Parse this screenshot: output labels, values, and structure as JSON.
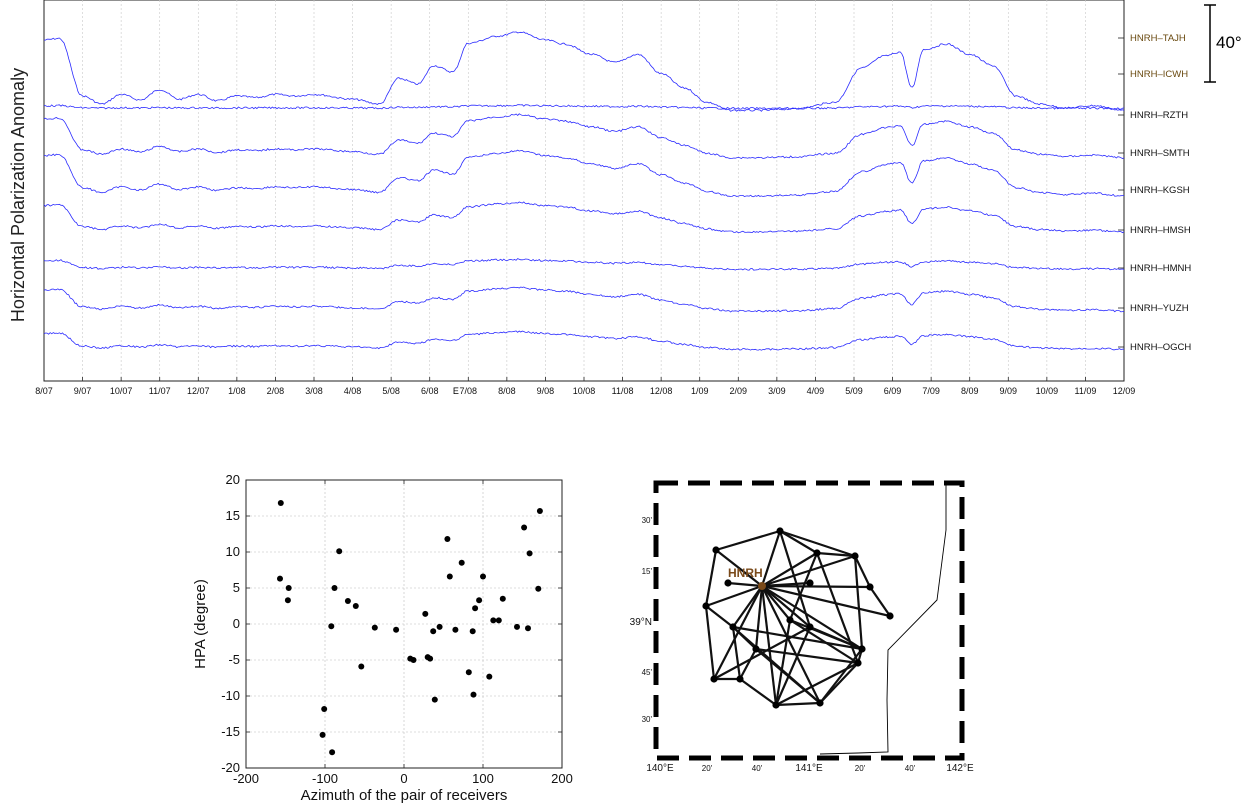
{
  "chart_data": [
    {
      "type": "line",
      "ylabel": "Horizontal Polarization Anomaly",
      "x_tick_labels": [
        "8/07",
        "9/07",
        "10/07",
        "11/07",
        "12/07",
        "1/08",
        "2/08",
        "3/08",
        "4/08",
        "5/08",
        "6/08",
        "7/08",
        "8/08",
        "9/08",
        "10/08",
        "11/08",
        "12/08",
        "1/09",
        "2/09",
        "3/09",
        "4/09",
        "5/09",
        "6/09",
        "7/09",
        "8/09",
        "9/09",
        "10/09",
        "11/09",
        "12/09"
      ],
      "event_marker": "E",
      "event_month_index": 10.6,
      "scale_bar_label": "40°",
      "grid": true,
      "line_color": "#2b2bff",
      "series": [
        {
          "name": "HNRH–TAJH",
          "amplitude": 1.0,
          "base_offset": 3,
          "label_color": "#6a4a10"
        },
        {
          "name": "HNRH–ICWH",
          "amplitude": 0.0,
          "base_offset": 0,
          "label_color": "#6a4a10"
        },
        {
          "name": "HNRH–RZTH",
          "amplitude": 0.06,
          "base_offset": 0
        },
        {
          "name": "HNRH–SMTH",
          "amplitude": 0.65,
          "base_offset": 0
        },
        {
          "name": "HNRH–KGSH",
          "amplitude": 0.7,
          "base_offset": 0
        },
        {
          "name": "HNRH–HMSH",
          "amplitude": 0.45,
          "base_offset": 0
        },
        {
          "name": "HNRH–HMNH",
          "amplitude": 0.18,
          "base_offset": 0
        },
        {
          "name": "HNRH–YUZH",
          "amplitude": 0.35,
          "base_offset": 0
        },
        {
          "name": "HNRH–OGCH",
          "amplitude": 0.25,
          "base_offset": 0
        }
      ]
    },
    {
      "type": "scatter",
      "xlabel": "Azimuth of the pair of receivers",
      "ylabel": "HPA (degree)",
      "xlim": [
        -200,
        200
      ],
      "ylim": [
        -20,
        20
      ],
      "x_ticks": [
        -200,
        -100,
        0,
        100,
        200
      ],
      "y_ticks": [
        -20,
        -15,
        -10,
        -5,
        0,
        5,
        10,
        15,
        20
      ],
      "grid": true,
      "points": [
        [
          -156,
          16.8
        ],
        [
          -157,
          6.3
        ],
        [
          -146,
          5.0
        ],
        [
          -147,
          3.3
        ],
        [
          -101,
          -11.8
        ],
        [
          -103,
          -15.4
        ],
        [
          -91,
          -17.8
        ],
        [
          -92,
          -0.3
        ],
        [
          -88,
          5.0
        ],
        [
          -82,
          10.1
        ],
        [
          -71,
          3.2
        ],
        [
          -61,
          2.5
        ],
        [
          -54,
          -5.9
        ],
        [
          -37,
          -0.5
        ],
        [
          -10,
          -0.8
        ],
        [
          8,
          -4.8
        ],
        [
          12,
          -5.0
        ],
        [
          27,
          1.4
        ],
        [
          30,
          -4.6
        ],
        [
          33,
          -4.8
        ],
        [
          37,
          -1.0
        ],
        [
          39,
          -10.5
        ],
        [
          45,
          -0.4
        ],
        [
          55,
          11.8
        ],
        [
          58,
          6.6
        ],
        [
          65,
          -0.8
        ],
        [
          73,
          8.5
        ],
        [
          82,
          -6.7
        ],
        [
          87,
          -1.0
        ],
        [
          88,
          -9.8
        ],
        [
          90,
          2.2
        ],
        [
          95,
          3.3
        ],
        [
          100,
          6.6
        ],
        [
          108,
          -7.3
        ],
        [
          113,
          0.5
        ],
        [
          120,
          0.5
        ],
        [
          125,
          3.5
        ],
        [
          143,
          -0.4
        ],
        [
          152,
          13.4
        ],
        [
          157,
          -0.6
        ],
        [
          159,
          9.8
        ],
        [
          170,
          4.9
        ],
        [
          172,
          15.7
        ]
      ]
    }
  ],
  "map": {
    "station_label": "HNRH",
    "lat_labels": [
      "30'",
      "15'",
      "39°N",
      "45'",
      "30'"
    ],
    "lon_labels": [
      "140°E",
      "20'",
      "40'",
      "141°E",
      "20'",
      "40'",
      "142°E"
    ],
    "station_color": "#7a4a1a"
  }
}
